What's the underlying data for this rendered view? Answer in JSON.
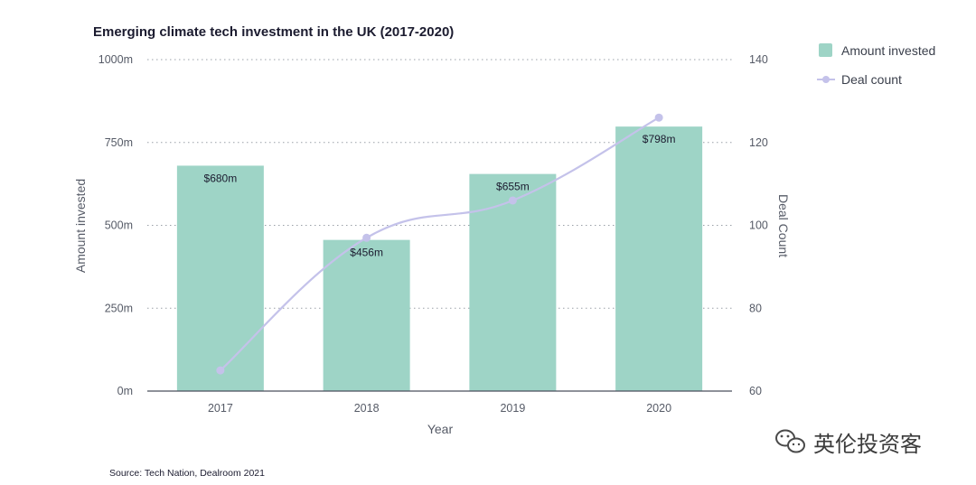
{
  "chart_data": {
    "type": "bar",
    "title": "Emerging climate tech investment in the UK (2017-2020)",
    "categories": [
      "2017",
      "2018",
      "2019",
      "2020"
    ],
    "series": [
      {
        "name": "Amount invested",
        "type": "bar",
        "axis": "left",
        "values": [
          680,
          456,
          655,
          798
        ],
        "labels": [
          "$680m",
          "$456m",
          "$655m",
          "$798m"
        ],
        "color": "#9ed4c6"
      },
      {
        "name": "Deal count",
        "type": "line",
        "axis": "right",
        "values": [
          65,
          97,
          106,
          126
        ],
        "color": "#c4c2ea"
      }
    ],
    "xlabel": "Year",
    "ylabel": "Amount invested",
    "y2label": "Deal Count",
    "ylim": [
      0,
      1000
    ],
    "y2lim": [
      60,
      140
    ],
    "yticks": [
      "0m",
      "250m",
      "500m",
      "750m",
      "1000m"
    ],
    "y2ticks": [
      "60",
      "80",
      "100",
      "120",
      "140"
    ],
    "grid": "dotted-horizontal",
    "legend_position": "top-right",
    "source": "Source: Tech Nation, Dealroom 2021"
  },
  "watermark": {
    "text": "英伦投资客",
    "icon": "wechat-icon"
  }
}
